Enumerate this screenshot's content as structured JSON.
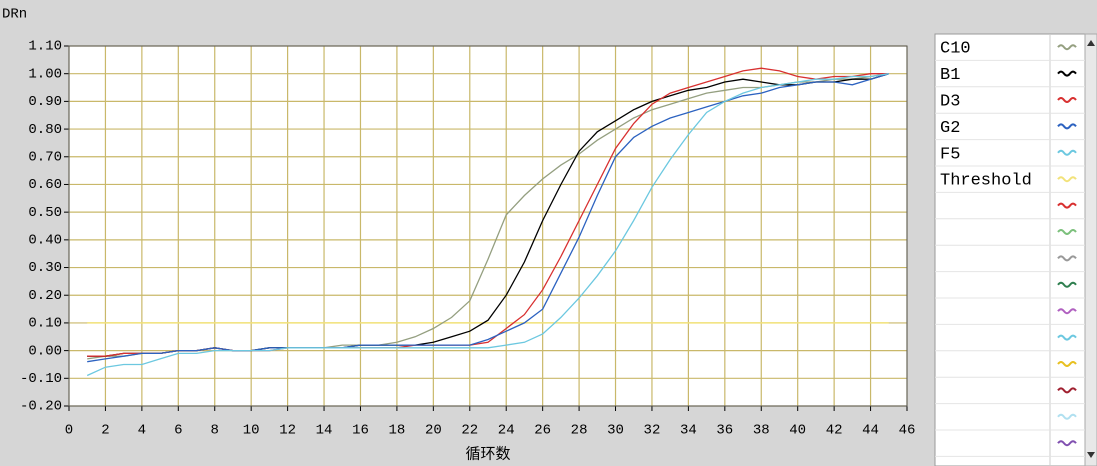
{
  "chart_data": {
    "type": "line",
    "y_label": "DRn",
    "x_label": "循环数",
    "x": [
      1,
      2,
      3,
      4,
      5,
      6,
      7,
      8,
      9,
      10,
      11,
      12,
      13,
      14,
      15,
      16,
      17,
      18,
      19,
      20,
      21,
      22,
      23,
      24,
      25,
      26,
      27,
      28,
      29,
      30,
      31,
      32,
      33,
      34,
      35,
      36,
      37,
      38,
      39,
      40,
      41,
      42,
      43,
      44,
      45
    ],
    "series": [
      {
        "name": "C10",
        "color": "#949f80",
        "values": [
          -0.03,
          -0.02,
          -0.02,
          -0.01,
          -0.01,
          0,
          0,
          0.01,
          0,
          0,
          0.01,
          0.01,
          0.01,
          0.01,
          0.02,
          0.02,
          0.02,
          0.03,
          0.05,
          0.08,
          0.12,
          0.18,
          0.33,
          0.49,
          0.56,
          0.62,
          0.67,
          0.71,
          0.76,
          0.8,
          0.84,
          0.87,
          0.89,
          0.91,
          0.93,
          0.94,
          0.95,
          0.95,
          0.96,
          0.97,
          0.97,
          0.98,
          0.98,
          0.99,
          1.0
        ]
      },
      {
        "name": "B1",
        "color": "#000000",
        "values": [
          -0.02,
          -0.02,
          -0.01,
          -0.01,
          -0.01,
          0,
          0,
          0.01,
          0,
          0,
          0.01,
          0.01,
          0.01,
          0.01,
          0.01,
          0.02,
          0.02,
          0.02,
          0.02,
          0.03,
          0.05,
          0.07,
          0.11,
          0.2,
          0.32,
          0.47,
          0.6,
          0.72,
          0.79,
          0.83,
          0.87,
          0.9,
          0.92,
          0.94,
          0.95,
          0.97,
          0.98,
          0.97,
          0.96,
          0.96,
          0.97,
          0.97,
          0.98,
          0.98,
          1.0
        ]
      },
      {
        "name": "D3",
        "color": "#d83030",
        "values": [
          -0.02,
          -0.02,
          -0.01,
          -0.01,
          -0.01,
          0,
          0,
          0.01,
          0,
          0,
          0,
          0.01,
          0.01,
          0.01,
          0.01,
          0.01,
          0.01,
          0.01,
          0.02,
          0.02,
          0.02,
          0.02,
          0.03,
          0.08,
          0.13,
          0.22,
          0.34,
          0.47,
          0.6,
          0.73,
          0.82,
          0.89,
          0.93,
          0.95,
          0.97,
          0.99,
          1.01,
          1.02,
          1.01,
          0.99,
          0.98,
          0.99,
          0.99,
          1.0,
          1.0
        ]
      },
      {
        "name": "G2",
        "color": "#2c62c0",
        "values": [
          -0.04,
          -0.03,
          -0.02,
          -0.01,
          -0.01,
          0,
          0,
          0.01,
          0,
          0,
          0.01,
          0.01,
          0.01,
          0.01,
          0.01,
          0.02,
          0.02,
          0.02,
          0.02,
          0.02,
          0.02,
          0.02,
          0.04,
          0.07,
          0.1,
          0.15,
          0.28,
          0.41,
          0.56,
          0.7,
          0.77,
          0.81,
          0.84,
          0.86,
          0.88,
          0.9,
          0.92,
          0.93,
          0.95,
          0.96,
          0.97,
          0.97,
          0.96,
          0.98,
          1.0
        ]
      },
      {
        "name": "F5",
        "color": "#6cc8e0",
        "values": [
          -0.09,
          -0.06,
          -0.05,
          -0.05,
          -0.03,
          -0.01,
          -0.01,
          0,
          0,
          0,
          0,
          0.01,
          0.01,
          0.01,
          0.01,
          0.01,
          0.01,
          0.01,
          0.01,
          0.01,
          0.01,
          0.01,
          0.01,
          0.02,
          0.03,
          0.06,
          0.12,
          0.19,
          0.27,
          0.36,
          0.47,
          0.59,
          0.69,
          0.78,
          0.86,
          0.9,
          0.93,
          0.95,
          0.96,
          0.97,
          0.98,
          0.98,
          0.99,
          0.99,
          1.0
        ]
      }
    ],
    "threshold": {
      "name": "Threshold",
      "color": "#f2e27a",
      "value": 0.1
    },
    "xlim": [
      0,
      46
    ],
    "ylim": [
      -0.2,
      1.1
    ],
    "xticks": [
      0,
      2,
      4,
      6,
      8,
      10,
      12,
      14,
      16,
      18,
      20,
      22,
      24,
      26,
      28,
      30,
      32,
      34,
      36,
      38,
      40,
      42,
      44,
      46
    ],
    "yticks": [
      {
        "value": 1.1,
        "label": "1.10"
      },
      {
        "value": 1.0,
        "label": "1.00"
      },
      {
        "value": 0.9,
        "label": "0.90"
      },
      {
        "value": 0.8,
        "label": "0.80"
      },
      {
        "value": 0.7,
        "label": "0.70"
      },
      {
        "value": 0.6,
        "label": "0.60"
      },
      {
        "value": 0.5,
        "label": "0.50"
      },
      {
        "value": 0.4,
        "label": "0.40"
      },
      {
        "value": 0.3,
        "label": "0.30"
      },
      {
        "value": 0.2,
        "label": "0.20"
      },
      {
        "value": 0.1,
        "label": "0.10"
      },
      {
        "value": 0,
        "label": "0.00"
      },
      {
        "value": -0.1,
        "label": "-0.10"
      },
      {
        "value": -0.2,
        "label": "-0.20"
      }
    ],
    "grid": true,
    "grid_color": "#c9b86a"
  }
}
